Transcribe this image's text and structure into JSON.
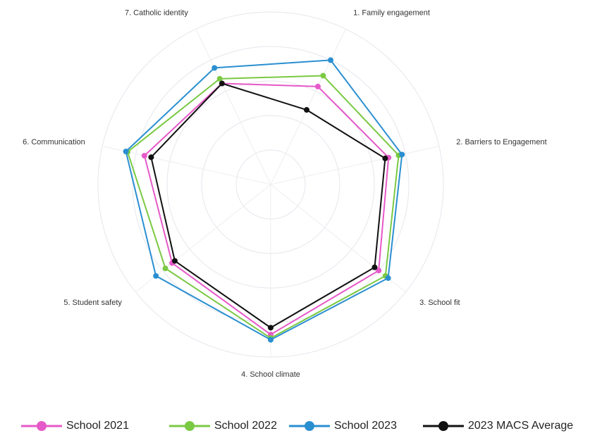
{
  "chart_data": {
    "type": "radar",
    "categories": [
      "1. Family engagement",
      "2. Barriers to Engagement",
      "3. School fit",
      "4. School climate",
      "5. Student safety",
      "6. Communication",
      "7. Catholic identity"
    ],
    "ylim": [
      0,
      100
    ],
    "yticks": [
      20,
      40,
      60,
      80,
      100
    ],
    "grid": true,
    "legend": "bottom",
    "series": [
      {
        "name": "School 2021",
        "color": "#e659c8",
        "values": [
          63,
          70,
          80,
          87,
          73,
          75,
          65
        ]
      },
      {
        "name": "School 2022",
        "color": "#7ac943",
        "values": [
          70,
          76,
          85,
          89,
          78,
          85,
          68
        ]
      },
      {
        "name": "School 2023",
        "color": "#2a8fd1",
        "values": [
          80,
          78,
          87,
          90,
          85,
          86,
          75
        ]
      },
      {
        "name": "2023 MACS Average",
        "color": "#111111",
        "values": [
          48,
          68,
          77,
          83,
          71,
          71,
          65
        ]
      }
    ]
  }
}
